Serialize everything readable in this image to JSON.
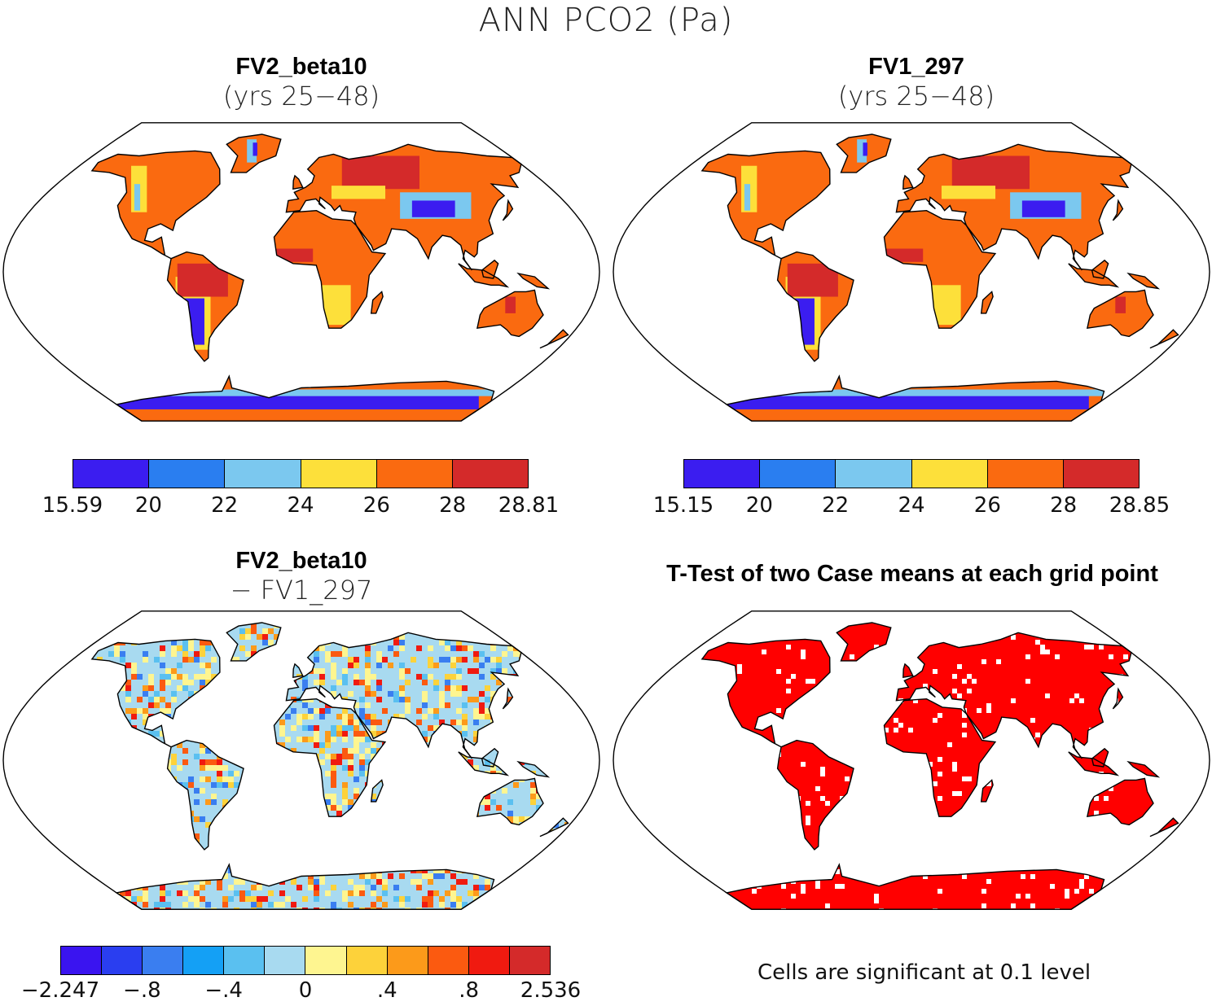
{
  "title": "ANN PCO2 (Pa)",
  "panels": [
    {
      "id": "fv2",
      "line1": "FV2_beta10",
      "line2": "(yrs 25−48)"
    },
    {
      "id": "fv1",
      "line1": "FV1_297",
      "line2": "(yrs 25−48)"
    },
    {
      "id": "diff",
      "line1": "FV2_beta10",
      "line2": "− FV1_297"
    },
    {
      "id": "ttest",
      "line1": "T-Test of two Case means at each grid point",
      "footnote": "Cells are significant at 0.1 level"
    }
  ],
  "colorbars": {
    "fv2": {
      "colors": [
        "#3b1df0",
        "#2a7ef0",
        "#7bc8ef",
        "#fde03a",
        "#fa6a10",
        "#d42a2a"
      ],
      "labels": [
        "15.59",
        "20",
        "22",
        "24",
        "26",
        "28",
        "28.81"
      ]
    },
    "fv1": {
      "colors": [
        "#3b1df0",
        "#2a7ef0",
        "#7bc8ef",
        "#fde03a",
        "#fa6a10",
        "#d42a2a"
      ],
      "labels": [
        "15.15",
        "20",
        "22",
        "24",
        "26",
        "28",
        "28.85"
      ]
    },
    "diff": {
      "colors": [
        "#3a14f0",
        "#2a3ef0",
        "#3a7ef0",
        "#14a0f5",
        "#5ac0f0",
        "#a8daf0",
        "#fef590",
        "#fdd23a",
        "#fc9a1a",
        "#fb5a10",
        "#f01a10",
        "#d42a2a"
      ],
      "labels": [
        "−2.247",
        "−.8",
        "−.4",
        "0",
        ".4",
        ".8",
        "2.536"
      ]
    }
  },
  "map_colors": {
    "land_main_fv": "#fa6a10",
    "land_high_fv": "#d42a2a",
    "land_mid_fv": "#fde03a",
    "land_low_fv": "#3b1df0",
    "land_light_fv": "#7bc8ef",
    "diff_base": "#a8daf0",
    "diff_pos": "#fef590",
    "ttest_sig": "#ff0000",
    "ocean": "#ffffff"
  }
}
